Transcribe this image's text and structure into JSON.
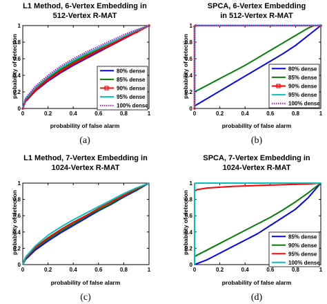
{
  "chart_data": [
    {
      "type": "line",
      "panel": "(a)",
      "title": [
        "L1 Method, 6-Vertex Embedding in",
        "512-Vertex R-MAT"
      ],
      "xlabel": "probability of false alarm",
      "ylabel": "probability of detection",
      "xlim": [
        0,
        1
      ],
      "ylim": [
        0,
        1
      ],
      "xticks": [
        "0",
        "0.2",
        "0.4",
        "0.6",
        "0.8",
        "1"
      ],
      "yticks": [
        "0",
        "0.2",
        "0.4",
        "0.6",
        "0.8",
        "1"
      ],
      "legend_position": "bottom-right",
      "series": [
        {
          "name": "80% dense",
          "color": "#0000ff",
          "style": "solid",
          "x": [
            0,
            0.02,
            0.1,
            0.2,
            0.3,
            0.4,
            0.5,
            0.6,
            0.7,
            0.8,
            0.9,
            1.0
          ],
          "y": [
            0,
            0.08,
            0.21,
            0.33,
            0.43,
            0.52,
            0.6,
            0.68,
            0.76,
            0.84,
            0.92,
            1.0
          ]
        },
        {
          "name": "85% dense",
          "color": "#008000",
          "style": "solid",
          "x": [
            0,
            0.02,
            0.1,
            0.2,
            0.3,
            0.4,
            0.5,
            0.6,
            0.7,
            0.8,
            0.9,
            1.0
          ],
          "y": [
            0,
            0.1,
            0.24,
            0.36,
            0.47,
            0.56,
            0.64,
            0.71,
            0.78,
            0.85,
            0.93,
            1.0
          ]
        },
        {
          "name": "90% dense",
          "color": "#ff0000",
          "style": "solid-marker",
          "x": [
            0,
            0.02,
            0.1,
            0.2,
            0.3,
            0.4,
            0.5,
            0.6,
            0.7,
            0.8,
            0.9,
            1.0
          ],
          "y": [
            0,
            0.09,
            0.22,
            0.35,
            0.45,
            0.54,
            0.62,
            0.7,
            0.77,
            0.85,
            0.92,
            1.0
          ]
        },
        {
          "name": "95% dense",
          "color": "#00bfbf",
          "style": "solid",
          "x": [
            0,
            0.02,
            0.1,
            0.2,
            0.3,
            0.4,
            0.5,
            0.6,
            0.7,
            0.8,
            0.9,
            1.0
          ],
          "y": [
            0,
            0.11,
            0.25,
            0.38,
            0.49,
            0.58,
            0.66,
            0.73,
            0.8,
            0.87,
            0.94,
            1.0
          ]
        },
        {
          "name": "100% dense",
          "color": "#bf00bf",
          "style": "dotted",
          "x": [
            0,
            0.02,
            0.1,
            0.2,
            0.3,
            0.4,
            0.5,
            0.6,
            0.7,
            0.8,
            0.9,
            1.0
          ],
          "y": [
            0,
            0.12,
            0.27,
            0.4,
            0.51,
            0.6,
            0.68,
            0.75,
            0.82,
            0.89,
            0.95,
            1.0
          ]
        }
      ]
    },
    {
      "type": "line",
      "panel": "(b)",
      "title": [
        "SPCA, 6-Vertex Embedding",
        "in 512-Vertex R-MAT"
      ],
      "xlabel": "probability of false alarm",
      "ylabel": "probability of detection",
      "xlim": [
        0,
        1
      ],
      "ylim": [
        0,
        1
      ],
      "xticks": [
        "0",
        "0.2",
        "0.4",
        "0.6",
        "0.8",
        "1"
      ],
      "yticks": [
        "0",
        "0.2",
        "0.4",
        "0.6",
        "0.8",
        "1"
      ],
      "legend_position": "bottom-right",
      "series": [
        {
          "name": "80% dense",
          "color": "#0000ff",
          "style": "solid",
          "x": [
            0,
            0.1,
            0.2,
            0.3,
            0.4,
            0.5,
            0.6,
            0.7,
            0.8,
            0.9,
            1.0
          ],
          "y": [
            0.03,
            0.12,
            0.21,
            0.3,
            0.39,
            0.48,
            0.57,
            0.66,
            0.76,
            0.88,
            1.0
          ]
        },
        {
          "name": "85% dense",
          "color": "#008000",
          "style": "solid",
          "x": [
            0,
            0.1,
            0.2,
            0.3,
            0.4,
            0.5,
            0.6,
            0.7,
            0.8,
            0.9,
            0.95,
            1.0
          ],
          "y": [
            0.2,
            0.28,
            0.36,
            0.44,
            0.52,
            0.61,
            0.7,
            0.79,
            0.88,
            0.97,
            1.0,
            1.0
          ]
        },
        {
          "name": "90% dense",
          "color": "#ff0000",
          "style": "solid-marker",
          "x": [
            0,
            0,
            0.01,
            1.0
          ],
          "y": [
            0,
            0.99,
            1.0,
            1.0
          ]
        },
        {
          "name": "95% dense",
          "color": "#00bfbf",
          "style": "solid",
          "x": [
            0,
            0,
            0.01,
            1.0
          ],
          "y": [
            0,
            0.99,
            1.0,
            1.0
          ]
        },
        {
          "name": "100% dense",
          "color": "#bf00bf",
          "style": "dotted",
          "x": [
            0,
            0,
            0.01,
            1.0
          ],
          "y": [
            0,
            0.99,
            1.0,
            1.0
          ]
        }
      ]
    },
    {
      "type": "line",
      "panel": "(c)",
      "title": [
        "L1 Method, 7-Vertex Embedding in",
        "1024-Vertex R-MAT"
      ],
      "xlabel": "probability of false alarm",
      "ylabel": "probability of detection",
      "xlim": [
        0,
        1
      ],
      "ylim": [
        0,
        1
      ],
      "xticks": [
        "0",
        "0.2",
        "0.4",
        "0.6",
        "0.8",
        "1"
      ],
      "yticks": [
        "0",
        "0.2",
        "0.4",
        "0.6",
        "0.8",
        "1"
      ],
      "legend_position": "none",
      "series": [
        {
          "name": "",
          "color": "#0000ff",
          "style": "solid",
          "x": [
            0,
            0.02,
            0.1,
            0.2,
            0.3,
            0.4,
            0.5,
            0.6,
            0.7,
            0.8,
            0.9,
            1.0
          ],
          "y": [
            0,
            0.06,
            0.18,
            0.29,
            0.39,
            0.48,
            0.57,
            0.66,
            0.74,
            0.83,
            0.91,
            1.0
          ]
        },
        {
          "name": "",
          "color": "#008000",
          "style": "solid",
          "x": [
            0,
            0.02,
            0.1,
            0.2,
            0.3,
            0.4,
            0.5,
            0.6,
            0.7,
            0.8,
            0.9,
            1.0
          ],
          "y": [
            0,
            0.07,
            0.2,
            0.31,
            0.41,
            0.5,
            0.59,
            0.67,
            0.75,
            0.84,
            0.92,
            1.0
          ]
        },
        {
          "name": "",
          "color": "#ff0000",
          "style": "solid",
          "x": [
            0,
            0.02,
            0.1,
            0.2,
            0.3,
            0.4,
            0.5,
            0.6,
            0.7,
            0.8,
            0.9,
            1.0
          ],
          "y": [
            0,
            0.08,
            0.21,
            0.33,
            0.43,
            0.52,
            0.6,
            0.69,
            0.77,
            0.85,
            0.93,
            1.0
          ]
        },
        {
          "name": "",
          "color": "#00bfbf",
          "style": "solid",
          "x": [
            0,
            0.02,
            0.1,
            0.2,
            0.3,
            0.4,
            0.5,
            0.6,
            0.7,
            0.8,
            0.9,
            1.0
          ],
          "y": [
            0,
            0.09,
            0.23,
            0.36,
            0.46,
            0.55,
            0.63,
            0.71,
            0.79,
            0.87,
            0.94,
            1.0
          ]
        }
      ]
    },
    {
      "type": "line",
      "panel": "(d)",
      "title": [
        "SPCA, 7-Vertex Embedding in",
        "1024-Vertex R-MAT"
      ],
      "xlabel": "probability of false alarm",
      "ylabel": "probability of detection",
      "xlim": [
        0,
        1
      ],
      "ylim": [
        0,
        1
      ],
      "xticks": [
        "0",
        "0.2",
        "0.4",
        "0.6",
        "0.8",
        "1"
      ],
      "yticks": [
        "0",
        "0.2",
        "0.4",
        "0.6",
        "0.8",
        "1"
      ],
      "legend_position": "bottom-right",
      "series": [
        {
          "name": "85% dense",
          "color": "#0000ff",
          "style": "solid",
          "x": [
            0,
            0.1,
            0.2,
            0.3,
            0.4,
            0.5,
            0.6,
            0.7,
            0.8,
            0.9,
            1.0
          ],
          "y": [
            0,
            0.06,
            0.14,
            0.22,
            0.3,
            0.38,
            0.48,
            0.58,
            0.68,
            0.82,
            1.0
          ]
        },
        {
          "name": "90% dense",
          "color": "#008000",
          "style": "solid",
          "x": [
            0,
            0.1,
            0.2,
            0.3,
            0.4,
            0.5,
            0.6,
            0.7,
            0.8,
            0.9,
            1.0
          ],
          "y": [
            0.1,
            0.18,
            0.26,
            0.34,
            0.42,
            0.5,
            0.58,
            0.67,
            0.77,
            0.88,
            1.0
          ]
        },
        {
          "name": "95% dense",
          "color": "#ff0000",
          "style": "solid",
          "x": [
            0,
            0,
            0.02,
            0.1,
            0.3,
            0.5,
            0.7,
            0.9,
            1.0
          ],
          "y": [
            0,
            0.9,
            0.92,
            0.94,
            0.96,
            0.97,
            0.98,
            0.99,
            1.0
          ]
        },
        {
          "name": "100% dense",
          "color": "#00bfbf",
          "style": "solid",
          "x": [
            0,
            0,
            0.01,
            1.0
          ],
          "y": [
            0,
            0.99,
            1.0,
            1.0
          ]
        }
      ]
    }
  ]
}
